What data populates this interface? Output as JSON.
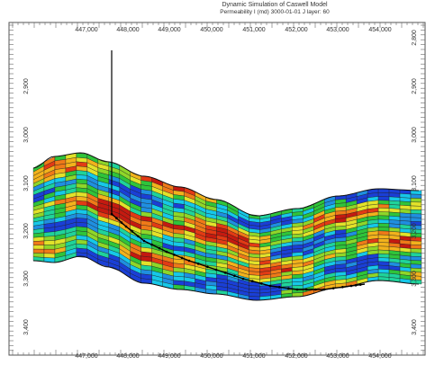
{
  "header": {
    "title": "Dynamic Simulation of Caswell Model",
    "subtitle": "Permeability I (md) 3000-01-01    J layer: 60"
  },
  "axes": {
    "x_ticks": [
      "447,000",
      "448,000",
      "449,000",
      "450,000",
      "451,000",
      "452,000",
      "453,000",
      "454,000"
    ],
    "y_left_ticks": [
      "2,900",
      "3,000",
      "3,100",
      "3,200",
      "3,300",
      "3,400"
    ],
    "y_right_ticks": [
      "2,800",
      "2,900",
      "3,000",
      "3,100",
      "3,200",
      "3,300",
      "3,400"
    ]
  },
  "colors": {
    "grid_line": "#1a1a1a",
    "well_path": "#000000",
    "palette": [
      "#1a3fd6",
      "#1f8fe0",
      "#16c8e8",
      "#1fd39a",
      "#2fc43a",
      "#8fd629",
      "#e2e22a",
      "#f2b21c",
      "#ef7a18",
      "#e23a14",
      "#c41a10"
    ]
  }
}
